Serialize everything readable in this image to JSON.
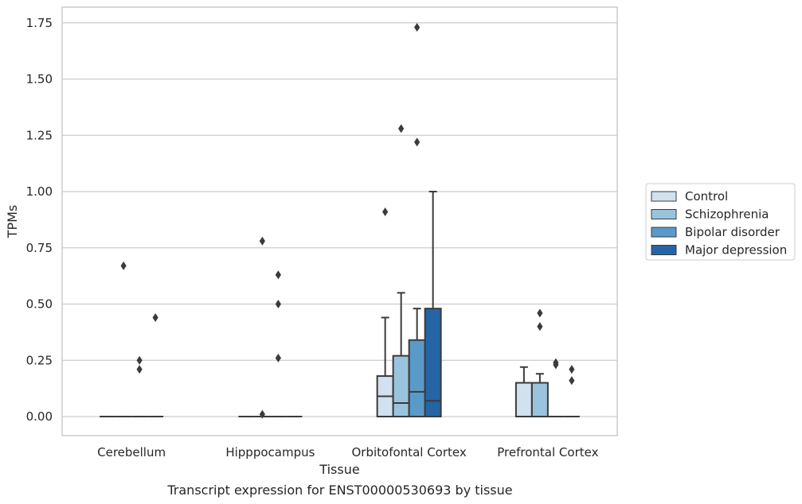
{
  "chart_data": {
    "type": "box",
    "xlabel": "Tissue",
    "ylabel": "TPMs",
    "caption": "Transcript expression for ENST00000530693 by tissue",
    "categories": [
      "Cerebellum",
      "Hipppocampus",
      "Orbitofontal Cortex",
      "Prefrontal Cortex"
    ],
    "ylim": [
      -0.08,
      1.82
    ],
    "yticks": [
      0.0,
      0.25,
      0.5,
      0.75,
      1.0,
      1.25,
      1.5,
      1.75
    ],
    "ytick_labels": [
      "0.00",
      "0.25",
      "0.50",
      "0.75",
      "1.00",
      "1.25",
      "1.50",
      "1.75"
    ],
    "grid": "y",
    "legend_position": "right",
    "series": [
      {
        "name": "Control",
        "color": "#d1e1ef",
        "boxes": [
          {
            "whislo": 0,
            "q1": 0,
            "med": 0,
            "q3": 0,
            "whishi": 0,
            "fliers": []
          },
          {
            "whislo": 0,
            "q1": 0,
            "med": 0,
            "q3": 0,
            "whishi": 0,
            "fliers": []
          },
          {
            "whislo": 0,
            "q1": 0,
            "med": 0.09,
            "q3": 0.18,
            "whishi": 0.44,
            "fliers": [
              0.91
            ]
          },
          {
            "whislo": 0,
            "q1": 0,
            "med": 0,
            "q3": 0.15,
            "whishi": 0.22,
            "fliers": []
          }
        ]
      },
      {
        "name": "Schizophrenia",
        "color": "#9ac4dd",
        "boxes": [
          {
            "whislo": 0,
            "q1": 0,
            "med": 0,
            "q3": 0,
            "whishi": 0,
            "fliers": [
              0.67
            ]
          },
          {
            "whislo": 0,
            "q1": 0,
            "med": 0,
            "q3": 0,
            "whishi": 0,
            "fliers": [
              0.78,
              0.01
            ]
          },
          {
            "whislo": 0,
            "q1": 0,
            "med": 0.06,
            "q3": 0.27,
            "whishi": 0.55,
            "fliers": [
              1.28
            ]
          },
          {
            "whislo": 0,
            "q1": 0,
            "med": 0,
            "q3": 0.15,
            "whishi": 0.19,
            "fliers": [
              0.46,
              0.4
            ]
          }
        ]
      },
      {
        "name": "Bipolar disorder",
        "color": "#5a9ac9",
        "boxes": [
          {
            "whislo": 0,
            "q1": 0,
            "med": 0,
            "q3": 0,
            "whishi": 0,
            "fliers": [
              0.25,
              0.21
            ]
          },
          {
            "whislo": 0,
            "q1": 0,
            "med": 0,
            "q3": 0,
            "whishi": 0,
            "fliers": [
              0.63,
              0.5,
              0.26
            ]
          },
          {
            "whislo": 0,
            "q1": 0,
            "med": 0.11,
            "q3": 0.34,
            "whishi": 0.48,
            "fliers": [
              1.73,
              1.22
            ]
          },
          {
            "whislo": 0,
            "q1": 0,
            "med": 0,
            "q3": 0,
            "whishi": 0,
            "fliers": [
              0.24,
              0.23
            ]
          }
        ]
      },
      {
        "name": "Major depression",
        "color": "#2565a6",
        "boxes": [
          {
            "whislo": 0,
            "q1": 0,
            "med": 0,
            "q3": 0,
            "whishi": 0,
            "fliers": [
              0.44
            ]
          },
          {
            "whislo": 0,
            "q1": 0,
            "med": 0,
            "q3": 0,
            "whishi": 0,
            "fliers": []
          },
          {
            "whislo": 0,
            "q1": 0,
            "med": 0.07,
            "q3": 0.48,
            "whishi": 1.0,
            "fliers": []
          },
          {
            "whislo": 0,
            "q1": 0,
            "med": 0,
            "q3": 0,
            "whishi": 0,
            "fliers": [
              0.21,
              0.16
            ]
          }
        ]
      }
    ]
  }
}
